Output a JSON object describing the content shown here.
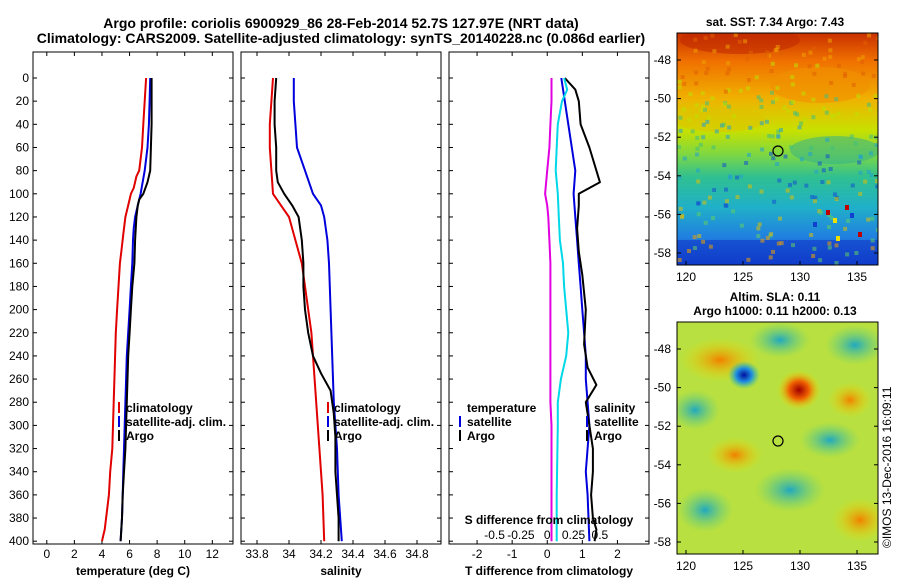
{
  "title_line1": "Argo profile: coriolis 6900929_86 28-Feb-2014 52.7S 127.97E (NRT data)",
  "title_line2": "Climatology: CARS2009. Satellite-adjusted climatology: synTS_20140228.nc (0.086d earlier)",
  "footer_text": "©IMOS 13-Dec-2016 16:09:11",
  "colors": {
    "climatology": "#e00000",
    "satellite": "#0000dd",
    "argo": "#000000",
    "s_climatology": "#e000e0",
    "s_satellite": "#00d8e8"
  },
  "depth_ticks": [
    "0",
    "20",
    "40",
    "60",
    "80",
    "100",
    "120",
    "140",
    "160",
    "180",
    "200",
    "220",
    "240",
    "260",
    "280",
    "300",
    "320",
    "340",
    "360",
    "380",
    "400"
  ],
  "chart_data": [
    {
      "type": "line",
      "panel": "temperature",
      "xlabel": "temperature (deg C)",
      "xlim": [
        -1,
        13.5
      ],
      "ylim": [
        400,
        0
      ],
      "xticks": [
        "0",
        "2",
        "4",
        "6",
        "8",
        "10",
        "12"
      ],
      "legend": [
        "climatology",
        "satellite-adj. clim.",
        "Argo"
      ],
      "series": [
        {
          "name": "climatology",
          "color": "red",
          "x": [
            7.2,
            7.1,
            7.0,
            6.9,
            6.8,
            6.7,
            6.5,
            6.4,
            6.3,
            6.1,
            5.9,
            5.7,
            5.55,
            5.4,
            5.3,
            5.2,
            5.1,
            5.0,
            4.95,
            4.9,
            4.85,
            4.8,
            4.75,
            4.6,
            4.5,
            4.4,
            4.3,
            4.2,
            4.1,
            4.0
          ],
          "y": [
            0,
            20,
            40,
            60,
            70,
            80,
            85,
            90,
            95,
            100,
            110,
            120,
            135,
            150,
            160,
            180,
            200,
            220,
            240,
            260,
            280,
            300,
            320,
            340,
            360,
            370,
            380,
            390,
            395,
            400
          ]
        },
        {
          "name": "satellite",
          "color": "blue",
          "x": [
            7.5,
            7.45,
            7.4,
            7.3,
            7.1,
            6.8,
            6.6,
            6.4,
            6.3,
            6.25,
            6.2,
            6.1,
            6.0,
            5.9,
            5.8,
            5.75,
            5.7,
            5.65,
            5.6,
            5.55,
            5.5,
            5.45,
            5.4,
            5.35
          ],
          "y": [
            0,
            20,
            40,
            60,
            80,
            100,
            110,
            120,
            130,
            140,
            160,
            180,
            200,
            220,
            240,
            260,
            280,
            300,
            320,
            340,
            360,
            380,
            390,
            400
          ]
        },
        {
          "name": "Argo",
          "color": "black",
          "x": [
            7.6,
            7.6,
            7.6,
            7.55,
            7.5,
            7.3,
            7.0,
            6.7,
            6.6,
            6.5,
            6.4,
            6.35,
            6.2,
            6.1,
            6.0,
            5.9,
            5.85,
            5.8,
            5.75,
            5.7,
            5.6,
            5.5,
            5.45,
            5.4,
            5.35
          ],
          "y": [
            0,
            20,
            40,
            60,
            80,
            90,
            100,
            105,
            110,
            120,
            140,
            160,
            180,
            200,
            220,
            240,
            260,
            280,
            300,
            320,
            340,
            360,
            380,
            390,
            400
          ]
        }
      ]
    },
    {
      "type": "line",
      "panel": "salinity",
      "xlabel": "salinity",
      "xlim": [
        33.7,
        34.95
      ],
      "ylim": [
        400,
        0
      ],
      "xticks": [
        "33.8",
        "34",
        "34.2",
        "34.4",
        "34.6",
        "34.8"
      ],
      "legend": [
        "climatology",
        "satellite-adj. clim.",
        "Argo"
      ],
      "series": [
        {
          "name": "climatology",
          "color": "red",
          "x": [
            33.9,
            33.89,
            33.88,
            33.88,
            33.89,
            33.9,
            33.95,
            34.0,
            34.04,
            34.08,
            34.1,
            34.12,
            34.14,
            34.15,
            34.16,
            34.17,
            34.18,
            34.19,
            34.2,
            34.21,
            34.22
          ],
          "y": [
            0,
            20,
            40,
            60,
            80,
            100,
            110,
            120,
            140,
            160,
            180,
            200,
            220,
            240,
            260,
            280,
            300,
            320,
            340,
            360,
            400
          ]
        },
        {
          "name": "satellite",
          "color": "blue",
          "x": [
            34.03,
            34.03,
            34.04,
            34.05,
            34.1,
            34.15,
            34.2,
            34.22,
            34.24,
            34.25,
            34.26,
            34.27,
            34.28,
            34.3,
            34.31,
            34.32,
            34.33
          ],
          "y": [
            0,
            20,
            40,
            60,
            80,
            100,
            110,
            120,
            140,
            160,
            200,
            240,
            280,
            320,
            360,
            380,
            400
          ]
        },
        {
          "name": "Argo",
          "color": "black",
          "x": [
            33.92,
            33.91,
            33.91,
            33.92,
            33.92,
            33.93,
            33.97,
            34.02,
            34.06,
            34.08,
            34.09,
            34.09,
            34.1,
            34.12,
            34.15,
            34.2,
            34.26,
            34.28,
            34.29,
            34.29,
            34.3,
            34.31,
            34.31
          ],
          "y": [
            0,
            20,
            40,
            60,
            80,
            90,
            100,
            110,
            120,
            140,
            160,
            180,
            200,
            220,
            240,
            255,
            270,
            290,
            310,
            340,
            360,
            380,
            400
          ]
        }
      ]
    },
    {
      "type": "line",
      "panel": "difference",
      "xlabel": "T difference from climatology",
      "xlabel_top": "S difference from climatology",
      "xlim": [
        -2.8,
        2.9
      ],
      "ylim": [
        400,
        0
      ],
      "xticks": [
        "-2",
        "-1",
        "0",
        "1",
        "2"
      ],
      "s_xticks": [
        "-0.5",
        "-0.25",
        "0",
        "0.25",
        "0.5"
      ],
      "legend_left_title": "temperature",
      "legend_left": [
        "satellite",
        "Argo"
      ],
      "legend_right_title": "salinity",
      "legend_right": [
        "satellite",
        "Argo"
      ],
      "series": [
        {
          "name": "T satellite",
          "color": "blue",
          "x": [
            0.4,
            0.5,
            0.6,
            0.7,
            0.8,
            0.75,
            0.8,
            0.85,
            0.9,
            0.95,
            1.0,
            1.05,
            1.1,
            1.1,
            1.15,
            1.2,
            1.15,
            1.1,
            1.15,
            1.2
          ],
          "y": [
            0,
            20,
            40,
            60,
            80,
            100,
            120,
            140,
            160,
            180,
            200,
            220,
            240,
            260,
            280,
            300,
            320,
            340,
            360,
            400
          ]
        },
        {
          "name": "T Argo",
          "color": "black",
          "x": [
            0.5,
            0.8,
            0.9,
            0.95,
            1.2,
            1.5,
            0.9,
            0.9,
            0.85,
            0.9,
            1.0,
            1.1,
            1.05,
            1.15,
            1.4,
            1.1,
            1.2,
            1.3,
            1.3,
            1.25,
            1.3,
            1.4,
            1.35
          ],
          "y": [
            0,
            10,
            20,
            40,
            60,
            90,
            100,
            110,
            130,
            150,
            170,
            200,
            230,
            250,
            265,
            280,
            300,
            320,
            340,
            360,
            380,
            390,
            400
          ]
        },
        {
          "name": "S satellite",
          "color": "magenta",
          "x": [
            0.04,
            0.04,
            0.03,
            0.02,
            0.0,
            -0.02,
            0.0,
            0.01,
            0.02,
            0.03,
            0.03,
            0.03,
            0.03,
            0.04,
            0.04,
            0.04,
            0.04,
            0.04
          ],
          "y": [
            0,
            20,
            40,
            60,
            80,
            100,
            110,
            120,
            140,
            160,
            200,
            240,
            280,
            300,
            320,
            340,
            360,
            400
          ]
        },
        {
          "name": "S Argo",
          "color": "cyan",
          "x": [
            0.16,
            0.19,
            0.14,
            0.1,
            0.09,
            0.08,
            0.1,
            0.11,
            0.12,
            0.15,
            0.16,
            0.18,
            0.2,
            0.18,
            0.13,
            0.1,
            0.1,
            0.09,
            0.09
          ],
          "y": [
            0,
            10,
            20,
            40,
            60,
            80,
            100,
            120,
            140,
            160,
            180,
            200,
            220,
            240,
            260,
            280,
            300,
            360,
            400
          ]
        }
      ]
    },
    {
      "type": "heatmap",
      "panel": "sst_map",
      "title": "sat. SST: 7.34 Argo: 7.43",
      "xticks": [
        "120",
        "125",
        "130",
        "135"
      ],
      "yticks": [
        "-48",
        "-50",
        "-52",
        "-54",
        "-56",
        "-58"
      ],
      "marker": {
        "lon": 127.97,
        "lat": -52.7
      }
    },
    {
      "type": "heatmap",
      "panel": "sla_map",
      "title_line1": "Altim. SLA: 0.11",
      "title_line2": "Argo h1000: 0.11 h2000: 0.13",
      "xticks": [
        "120",
        "125",
        "130",
        "135"
      ],
      "yticks": [
        "-48",
        "-50",
        "-52",
        "-54",
        "-56",
        "-58"
      ],
      "marker": {
        "lon": 127.97,
        "lat": -52.7
      }
    }
  ]
}
